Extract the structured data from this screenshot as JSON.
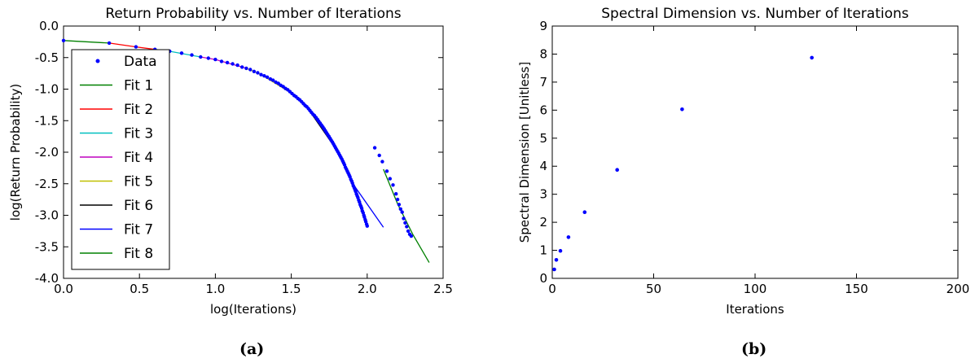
{
  "chart_data": [
    {
      "type": "line",
      "title": "Return Probability vs. Number of Iterations",
      "xlabel": "log(Iterations)",
      "ylabel": "log(Return Probability)",
      "xlim": [
        0.0,
        2.5
      ],
      "ylim": [
        -4.0,
        0.0
      ],
      "xticks": [
        "0.0",
        "0.5",
        "1.0",
        "1.5",
        "2.0",
        "2.5"
      ],
      "yticks": [
        "0.0",
        "-0.5",
        "-1.0",
        "-1.5",
        "-2.0",
        "-2.5",
        "-3.0",
        "-3.5",
        "-4.0"
      ],
      "grid": false,
      "legend_position": "left",
      "caption": "(a)",
      "data_series": {
        "name": "Data",
        "color": "#0000ff",
        "points": [
          [
            0.0,
            -0.23
          ],
          [
            0.301,
            -0.27
          ],
          [
            0.477,
            -0.33
          ],
          [
            0.602,
            -0.37
          ],
          [
            0.699,
            -0.4
          ],
          [
            0.778,
            -0.43
          ],
          [
            0.845,
            -0.46
          ],
          [
            0.903,
            -0.49
          ],
          [
            0.954,
            -0.51
          ],
          [
            1.0,
            -0.53
          ],
          [
            1.041,
            -0.56
          ],
          [
            1.079,
            -0.58
          ],
          [
            1.114,
            -0.6
          ],
          [
            1.146,
            -0.62
          ],
          [
            1.176,
            -0.65
          ],
          [
            1.204,
            -0.67
          ],
          [
            1.23,
            -0.69
          ],
          [
            1.255,
            -0.72
          ],
          [
            1.279,
            -0.74
          ],
          [
            1.301,
            -0.77
          ],
          [
            1.322,
            -0.79
          ],
          [
            1.342,
            -0.81
          ],
          [
            1.362,
            -0.84
          ],
          [
            1.38,
            -0.86
          ],
          [
            1.398,
            -0.89
          ],
          [
            1.415,
            -0.91
          ],
          [
            1.431,
            -0.94
          ],
          [
            1.447,
            -0.96
          ],
          [
            1.462,
            -0.99
          ],
          [
            1.477,
            -1.01
          ],
          [
            1.491,
            -1.04
          ],
          [
            1.505,
            -1.07
          ],
          [
            1.519,
            -1.1
          ],
          [
            1.531,
            -1.12
          ],
          [
            1.544,
            -1.15
          ],
          [
            1.556,
            -1.17
          ],
          [
            1.568,
            -1.2
          ],
          [
            1.58,
            -1.23
          ],
          [
            1.591,
            -1.26
          ],
          [
            1.602,
            -1.28
          ],
          [
            1.613,
            -1.31
          ],
          [
            1.623,
            -1.34
          ],
          [
            1.633,
            -1.37
          ],
          [
            1.643,
            -1.4
          ],
          [
            1.653,
            -1.42
          ],
          [
            1.663,
            -1.45
          ],
          [
            1.672,
            -1.48
          ],
          [
            1.681,
            -1.51
          ],
          [
            1.69,
            -1.54
          ],
          [
            1.699,
            -1.57
          ],
          [
            1.708,
            -1.6
          ],
          [
            1.716,
            -1.63
          ],
          [
            1.724,
            -1.66
          ],
          [
            1.732,
            -1.69
          ],
          [
            1.74,
            -1.72
          ],
          [
            1.748,
            -1.75
          ],
          [
            1.756,
            -1.78
          ],
          [
            1.763,
            -1.81
          ],
          [
            1.771,
            -1.84
          ],
          [
            1.778,
            -1.87
          ],
          [
            1.785,
            -1.9
          ],
          [
            1.792,
            -1.93
          ],
          [
            1.799,
            -1.96
          ],
          [
            1.806,
            -1.99
          ],
          [
            1.813,
            -2.02
          ],
          [
            1.82,
            -2.05
          ],
          [
            1.826,
            -2.08
          ],
          [
            1.833,
            -2.11
          ],
          [
            1.839,
            -2.14
          ],
          [
            1.845,
            -2.17
          ],
          [
            1.851,
            -2.2
          ],
          [
            1.857,
            -2.24
          ],
          [
            1.863,
            -2.27
          ],
          [
            1.869,
            -2.3
          ],
          [
            1.875,
            -2.33
          ],
          [
            1.881,
            -2.36
          ],
          [
            1.886,
            -2.39
          ],
          [
            1.892,
            -2.43
          ],
          [
            1.898,
            -2.46
          ],
          [
            1.903,
            -2.49
          ],
          [
            1.908,
            -2.53
          ],
          [
            1.914,
            -2.56
          ],
          [
            1.919,
            -2.59
          ],
          [
            1.924,
            -2.62
          ],
          [
            1.929,
            -2.66
          ],
          [
            1.934,
            -2.69
          ],
          [
            1.939,
            -2.72
          ],
          [
            1.944,
            -2.76
          ],
          [
            1.949,
            -2.79
          ],
          [
            1.954,
            -2.83
          ],
          [
            1.959,
            -2.86
          ],
          [
            1.964,
            -2.89
          ],
          [
            1.968,
            -2.93
          ],
          [
            1.973,
            -2.96
          ],
          [
            1.978,
            -3.0
          ],
          [
            1.982,
            -3.03
          ],
          [
            1.987,
            -3.07
          ],
          [
            1.991,
            -3.1
          ],
          [
            1.996,
            -3.14
          ],
          [
            2.0,
            -3.17
          ],
          [
            2.05,
            -1.93
          ],
          [
            2.08,
            -2.05
          ],
          [
            2.1,
            -2.15
          ],
          [
            2.13,
            -2.3
          ],
          [
            2.15,
            -2.42
          ],
          [
            2.17,
            -2.52
          ],
          [
            2.19,
            -2.66
          ],
          [
            2.2,
            -2.75
          ],
          [
            2.21,
            -2.83
          ],
          [
            2.22,
            -2.9
          ],
          [
            2.23,
            -2.95
          ],
          [
            2.24,
            -3.05
          ],
          [
            2.25,
            -3.12
          ],
          [
            2.26,
            -3.18
          ],
          [
            2.27,
            -3.25
          ],
          [
            2.28,
            -3.3
          ],
          [
            2.29,
            -3.33
          ]
        ]
      },
      "fits": [
        {
          "name": "Fit 1",
          "color": "#008000",
          "points": [
            [
              0.0,
              -0.23
            ],
            [
              0.301,
              -0.27
            ]
          ]
        },
        {
          "name": "Fit 2",
          "color": "#ff0000",
          "points": [
            [
              0.301,
              -0.27
            ],
            [
              0.477,
              -0.33
            ],
            [
              0.602,
              -0.37
            ]
          ]
        },
        {
          "name": "Fit 3",
          "color": "#00bfbf",
          "points": [
            [
              0.602,
              -0.37
            ],
            [
              0.699,
              -0.4
            ],
            [
              0.903,
              -0.49
            ]
          ]
        },
        {
          "name": "Fit 4",
          "color": "#bf00bf",
          "points": [
            [
              0.903,
              -0.49
            ],
            [
              1.0,
              -0.53
            ],
            [
              1.204,
              -0.67
            ]
          ]
        },
        {
          "name": "Fit 5",
          "color": "#bfbf00",
          "points": [
            [
              1.204,
              -0.67
            ],
            [
              1.301,
              -0.77
            ],
            [
              1.505,
              -1.07
            ]
          ]
        },
        {
          "name": "Fit 6",
          "color": "#000000",
          "points": [
            [
              1.505,
              -1.07
            ],
            [
              1.602,
              -1.28
            ],
            [
              1.806,
              -1.99
            ]
          ]
        },
        {
          "name": "Fit 7",
          "color": "#0000ff",
          "points": [
            [
              1.806,
              -1.99
            ],
            [
              1.903,
              -2.49
            ],
            [
              2.107,
              -3.19
            ]
          ]
        },
        {
          "name": "Fit 8",
          "color": "#008000",
          "points": [
            [
              2.107,
              -2.27
            ],
            [
              2.2,
              -2.82
            ],
            [
              2.3,
              -3.3
            ],
            [
              2.408,
              -3.75
            ]
          ]
        }
      ],
      "legend": [
        "Data",
        "Fit 1",
        "Fit 2",
        "Fit 3",
        "Fit 4",
        "Fit 5",
        "Fit 6",
        "Fit 7",
        "Fit 8"
      ]
    },
    {
      "type": "scatter",
      "title": "Spectral Dimension vs. Number of Iterations",
      "xlabel": "Iterations",
      "ylabel": "Spectral Dimension [Unitless]",
      "xlim": [
        0,
        200
      ],
      "ylim": [
        0,
        9
      ],
      "xticks": [
        "0",
        "50",
        "100",
        "150",
        "200"
      ],
      "yticks": [
        "0",
        "1",
        "2",
        "3",
        "4",
        "5",
        "6",
        "7",
        "8",
        "9"
      ],
      "grid": false,
      "caption": "(b)",
      "color": "#0000ff",
      "points": [
        [
          1,
          0.32
        ],
        [
          2,
          0.66
        ],
        [
          4,
          0.98
        ],
        [
          8,
          1.47
        ],
        [
          16,
          2.36
        ],
        [
          32,
          3.87
        ],
        [
          64,
          6.03
        ],
        [
          128,
          7.87
        ]
      ]
    }
  ]
}
